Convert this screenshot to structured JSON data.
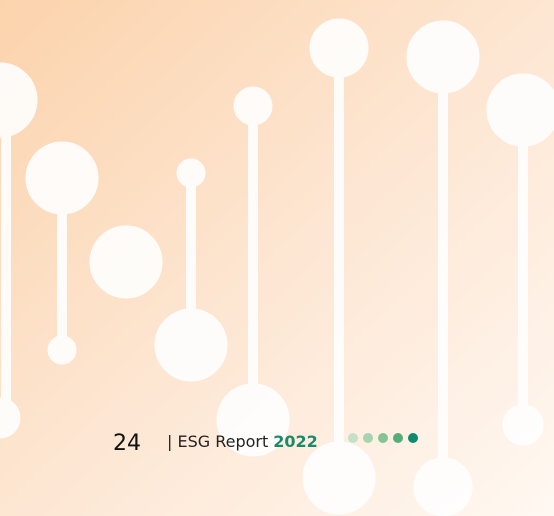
{
  "footer": {
    "page_number": "24",
    "label": "| ESG Report",
    "year": "2022"
  }
}
